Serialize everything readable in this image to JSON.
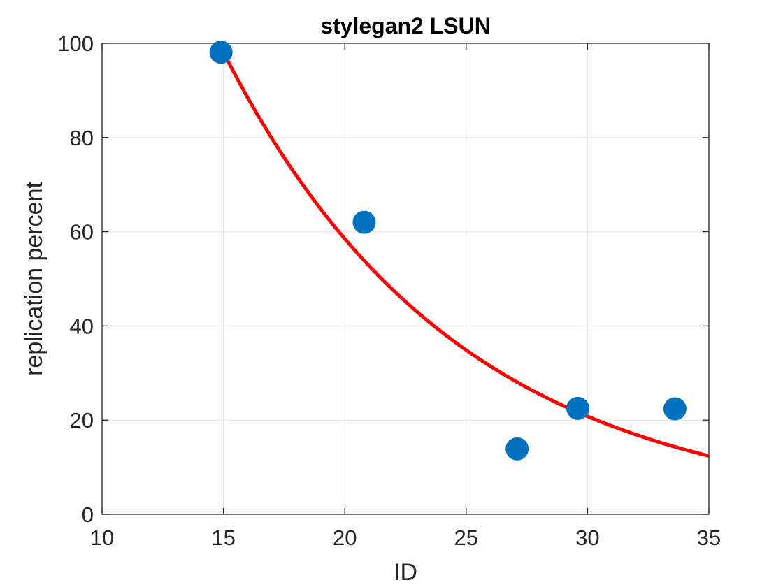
{
  "chart_data": {
    "type": "scatter",
    "title": "stylegan2 LSUN",
    "xlabel": "ID",
    "ylabel": "replication percent",
    "xlim": [
      10,
      35
    ],
    "ylim": [
      0,
      100
    ],
    "xticks": [
      "10",
      "15",
      "20",
      "25",
      "30",
      "35"
    ],
    "yticks": [
      "0",
      "20",
      "40",
      "60",
      "80",
      "100"
    ],
    "grid": true,
    "points": [
      {
        "x": 14.9,
        "y": 98.1
      },
      {
        "x": 20.8,
        "y": 62.0
      },
      {
        "x": 27.1,
        "y": 13.9
      },
      {
        "x": 29.6,
        "y": 22.5
      },
      {
        "x": 33.6,
        "y": 22.4
      }
    ],
    "fit": {
      "type": "exponential",
      "x_range": [
        15.1,
        35
      ],
      "samples": [
        {
          "x": 15.1,
          "y": 97.1
        },
        {
          "x": 20.0,
          "y": 58.5
        },
        {
          "x": 25.0,
          "y": 34.9
        },
        {
          "x": 30.0,
          "y": 20.8
        },
        {
          "x": 35.0,
          "y": 12.4
        }
      ]
    },
    "colors": {
      "points": "#0072BD",
      "fit": "#FF0000",
      "grid": "#e6e6e6",
      "axes": "#262626"
    }
  }
}
